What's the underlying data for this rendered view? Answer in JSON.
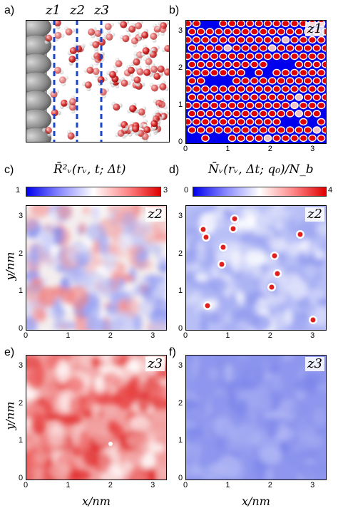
{
  "panels": {
    "a": {
      "label": "a)",
      "z": [
        "z1",
        "z2",
        "z3"
      ]
    },
    "b": {
      "label": "b)",
      "zlabel": "z1",
      "xticks": [
        "0",
        "1",
        "2",
        "3"
      ],
      "yticks": [
        "0",
        "1",
        "2",
        "3"
      ]
    },
    "c": {
      "label": "c)",
      "title": "R̄²ᵥ(rᵥ, t; Δt)",
      "cbar_min": "1",
      "cbar_max": "3",
      "zlabel": "z2",
      "xticks": [
        "0",
        "1",
        "2",
        "3"
      ],
      "yticks": [
        "0",
        "1",
        "2",
        "3"
      ]
    },
    "d": {
      "label": "d)",
      "title": "N̄ᵥ(rᵥ, Δt; q₀)/N_b",
      "cbar_min": "0",
      "cbar_max": "4",
      "zlabel": "z2",
      "xticks": [
        "0",
        "1",
        "2",
        "3"
      ],
      "yticks": [
        "0",
        "1",
        "2",
        "3"
      ]
    },
    "e": {
      "label": "e)",
      "zlabel": "z3",
      "xticks": [
        "0",
        "1",
        "2",
        "3"
      ],
      "yticks": [
        "0",
        "1",
        "2",
        "3"
      ]
    },
    "f": {
      "label": "f)",
      "zlabel": "z3",
      "xticks": [
        "0",
        "1",
        "2",
        "3"
      ],
      "yticks": [
        "0",
        "1",
        "2",
        "3"
      ]
    }
  },
  "axis_labels": {
    "y_nm": "y/nm",
    "x_nm": "x/nm"
  },
  "colors": {
    "blue": "#0000ee",
    "red": "#e00000",
    "white": "#ffffff",
    "marker": "#1a44cc"
  }
}
